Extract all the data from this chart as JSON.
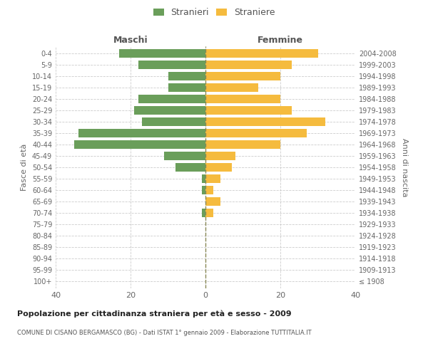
{
  "age_groups": [
    "100+",
    "95-99",
    "90-94",
    "85-89",
    "80-84",
    "75-79",
    "70-74",
    "65-69",
    "60-64",
    "55-59",
    "50-54",
    "45-49",
    "40-44",
    "35-39",
    "30-34",
    "25-29",
    "20-24",
    "15-19",
    "10-14",
    "5-9",
    "0-4"
  ],
  "birth_years": [
    "≤ 1908",
    "1909-1913",
    "1914-1918",
    "1919-1923",
    "1924-1928",
    "1929-1933",
    "1934-1938",
    "1939-1943",
    "1944-1948",
    "1949-1953",
    "1954-1958",
    "1959-1963",
    "1964-1968",
    "1969-1973",
    "1974-1978",
    "1979-1983",
    "1984-1988",
    "1989-1993",
    "1994-1998",
    "1999-2003",
    "2004-2008"
  ],
  "maschi": [
    0,
    0,
    0,
    0,
    0,
    0,
    1,
    0,
    1,
    1,
    8,
    11,
    35,
    34,
    17,
    19,
    18,
    10,
    10,
    18,
    23
  ],
  "femmine": [
    0,
    0,
    0,
    0,
    0,
    0,
    2,
    4,
    2,
    4,
    7,
    8,
    20,
    27,
    32,
    23,
    20,
    14,
    20,
    23,
    30
  ],
  "color_maschi": "#6a9e5a",
  "color_femmine": "#f5bb3e",
  "title": "Popolazione per cittadinanza straniera per età e sesso - 2009",
  "subtitle": "COMUNE DI CISANO BERGAMASCO (BG) - Dati ISTAT 1° gennaio 2009 - Elaborazione TUTTITALIA.IT",
  "ylabel_left": "Fasce di età",
  "ylabel_right": "Anni di nascita",
  "label_maschi": "Maschi",
  "label_femmine": "Femmine",
  "legend_stranieri": "Stranieri",
  "legend_straniere": "Straniere",
  "xlim": 40,
  "bg_color": "#ffffff",
  "grid_color": "#cccccc",
  "bar_height": 0.75
}
